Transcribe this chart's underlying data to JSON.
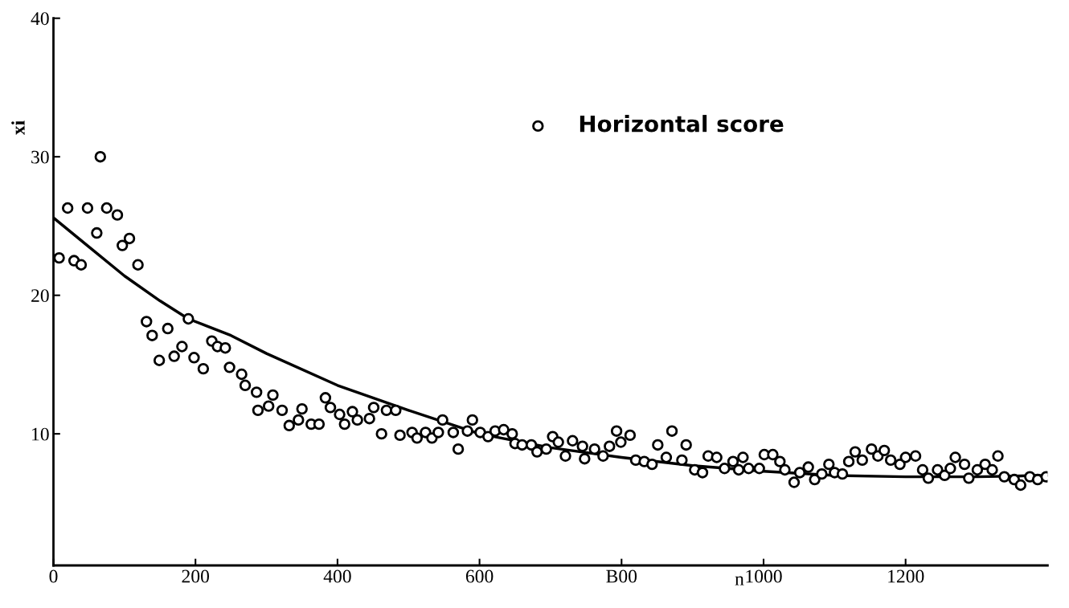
{
  "chart_data": {
    "type": "scatter",
    "xlabel": "n",
    "ylabel": "xi",
    "xlim": [
      0,
      1400
    ],
    "ylim": [
      0.5,
      40
    ],
    "xticks": [
      0,
      200,
      400,
      600,
      {
        "value": 800,
        "label": "B00"
      },
      1000,
      1200
    ],
    "yticks": [
      10,
      20,
      30,
      40
    ],
    "grid": false,
    "legend": "top",
    "series": [
      {
        "name": "Horizontal score",
        "marker": "circle",
        "color": "#000000",
        "x": [
          8,
          20,
          29,
          39,
          48,
          61,
          66,
          75,
          90,
          97,
          107,
          119,
          131,
          139,
          161,
          149,
          170,
          181,
          198,
          211,
          190,
          223,
          231,
          242,
          248,
          265,
          270,
          286,
          309,
          303,
          288,
          322,
          350,
          345,
          332,
          363,
          374,
          383,
          390,
          403,
          410,
          421,
          428,
          445,
          451,
          469,
          482,
          462,
          488,
          505,
          512,
          524,
          533,
          542,
          548,
          563,
          570,
          583,
          590,
          601,
          612,
          622,
          634,
          646,
          650,
          660,
          673,
          681,
          694,
          703,
          711,
          721,
          731,
          745,
          748,
          762,
          774,
          783,
          793,
          799,
          812,
          820,
          832,
          843,
          851,
          863,
          871,
          885,
          891,
          903,
          914,
          922,
          934,
          945,
          957,
          965,
          971,
          979,
          994,
          1001,
          1013,
          1023,
          1030,
          1043,
          1051,
          1063,
          1072,
          1082,
          1092,
          1100,
          1111,
          1120,
          1129,
          1139,
          1152,
          1161,
          1170,
          1179,
          1192,
          1200,
          1214,
          1224,
          1232,
          1245,
          1255,
          1263,
          1270,
          1283,
          1289,
          1301,
          1312,
          1322,
          1330,
          1339,
          1353,
          1362,
          1375,
          1386,
          1398
        ],
        "values": [
          22.7,
          26.3,
          22.5,
          22.2,
          26.3,
          24.5,
          30.0,
          26.3,
          25.8,
          23.6,
          24.1,
          22.2,
          18.1,
          17.1,
          17.6,
          15.3,
          15.6,
          16.3,
          15.5,
          14.7,
          18.3,
          16.7,
          16.3,
          16.2,
          14.8,
          14.3,
          13.5,
          13.0,
          12.8,
          12.0,
          11.7,
          11.7,
          11.8,
          11.0,
          10.6,
          10.7,
          10.7,
          12.6,
          11.9,
          11.4,
          10.7,
          11.6,
          11.0,
          11.1,
          11.9,
          11.7,
          11.7,
          10.0,
          9.9,
          10.1,
          9.7,
          10.1,
          9.7,
          10.1,
          11.0,
          10.1,
          8.9,
          10.2,
          11.0,
          10.1,
          9.8,
          10.2,
          10.3,
          10.0,
          9.3,
          9.2,
          9.2,
          8.7,
          8.9,
          9.8,
          9.4,
          8.4,
          9.5,
          9.1,
          8.2,
          8.9,
          8.4,
          9.1,
          10.2,
          9.4,
          9.9,
          8.1,
          8.0,
          7.8,
          9.2,
          8.3,
          10.2,
          8.1,
          9.2,
          7.4,
          7.2,
          8.4,
          8.3,
          7.5,
          8.0,
          7.4,
          8.3,
          7.5,
          7.5,
          8.5,
          8.5,
          8.0,
          7.4,
          6.5,
          7.2,
          7.6,
          6.7,
          7.1,
          7.8,
          7.2,
          7.1,
          8.0,
          8.7,
          8.1,
          8.9,
          8.4,
          8.8,
          8.1,
          7.8,
          8.3,
          8.4,
          7.4,
          6.8,
          7.4,
          7.0,
          7.5,
          8.3,
          7.8,
          6.8,
          7.4,
          7.8,
          7.4,
          8.4,
          6.9,
          6.7,
          6.3,
          6.9,
          6.7,
          6.9
        ]
      },
      {
        "type": "line",
        "color": "#000000",
        "x": [
          0,
          50,
          100,
          150,
          190,
          250,
          300,
          400,
          500,
          600,
          700,
          800,
          900,
          1000,
          1100,
          1200,
          1300,
          1400
        ],
        "values": [
          25.6,
          23.5,
          21.4,
          19.6,
          18.3,
          17.1,
          15.8,
          13.5,
          11.7,
          10.0,
          9.0,
          8.3,
          7.7,
          7.3,
          7.0,
          6.9,
          6.9,
          7.0
        ]
      }
    ]
  }
}
